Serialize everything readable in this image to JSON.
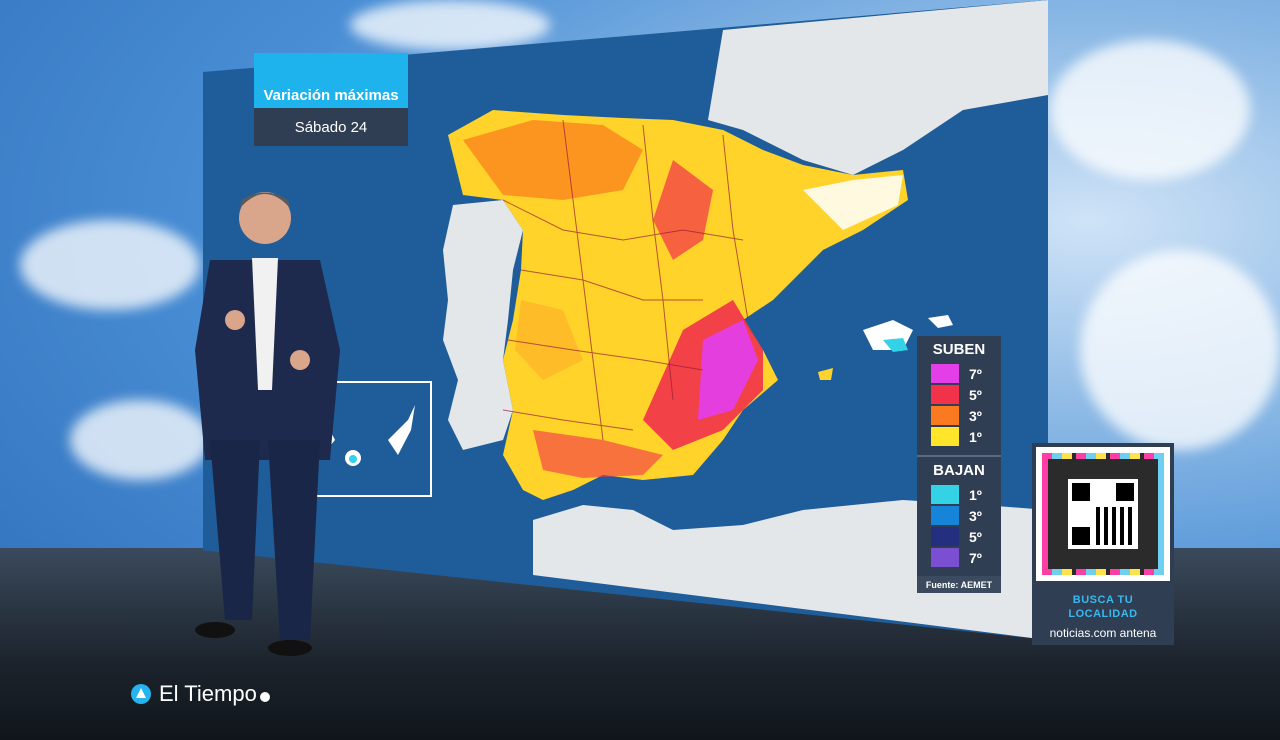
{
  "header": {
    "title": "Variación máximas",
    "date": "Sábado 24"
  },
  "legend": {
    "up_title": "SUBEN",
    "up": [
      {
        "label": "7º",
        "color": "#e43ee8"
      },
      {
        "label": "5º",
        "color": "#f2324a"
      },
      {
        "label": "3º",
        "color": "#fb7a1f"
      },
      {
        "label": "1º",
        "color": "#ffe62b"
      }
    ],
    "down_title": "BAJAN",
    "down": [
      {
        "label": "1º",
        "color": "#34d2e6"
      },
      {
        "label": "3º",
        "color": "#1685d9"
      },
      {
        "label": "5º",
        "color": "#24307f"
      },
      {
        "label": "7º",
        "color": "#7a4fd2"
      }
    ],
    "source": "Fuente: AEMET"
  },
  "qr": {
    "line1": "BUSCA TU",
    "line2": "LOCALIDAD",
    "url": "noticias.com   antena"
  },
  "brand": {
    "name": "El Tiempo"
  },
  "colors": {
    "sea": "#1f5d9a",
    "land": "#e4e7ea",
    "panel": "#2f3e52",
    "accent": "#1eb3ec"
  }
}
